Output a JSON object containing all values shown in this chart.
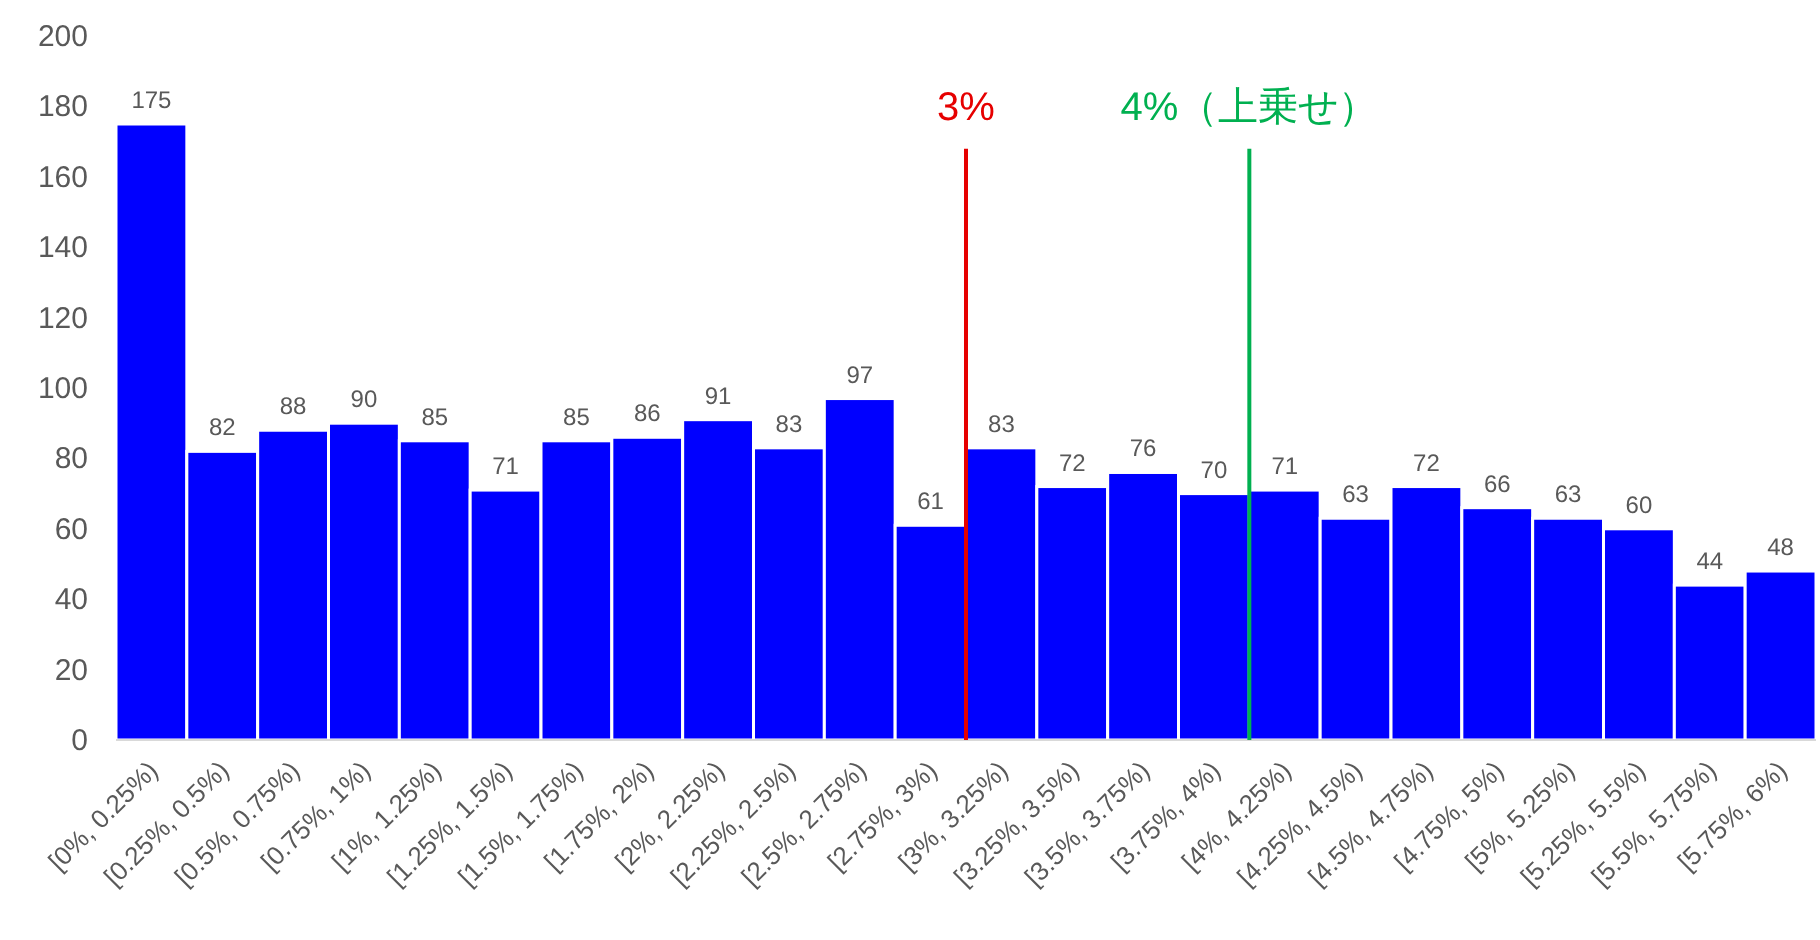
{
  "chart_data": {
    "type": "bar",
    "color": "#0000ff",
    "data_labels": true,
    "categories": [
      "[0%, 0.25%)",
      "[0.25%, 0.5%)",
      "[0.5%, 0.75%)",
      "[0.75%, 1%)",
      "[1%, 1.25%)",
      "[1.25%, 1.5%)",
      "[1.5%, 1.75%)",
      "[1.75%, 2%)",
      "[2%, 2.25%)",
      "[2.25%, 2.5%)",
      "[2.5%, 2.75%)",
      "[2.75%, 3%)",
      "[3%, 3.25%)",
      "[3.25%, 3.5%)",
      "[3.5%, 3.75%)",
      "[3.75%, 4%)",
      "[4%, 4.25%)",
      "[4.25%, 4.5%)",
      "[4.5%, 4.75%)",
      "[4.75%, 5%)",
      "[5%, 5.25%)",
      "[5.25%, 5.5%)",
      "[5.5%, 5.75%)",
      "[5.75%, 6%)"
    ],
    "values": [
      175,
      82,
      88,
      90,
      85,
      71,
      85,
      86,
      91,
      83,
      97,
      61,
      83,
      72,
      76,
      70,
      71,
      63,
      72,
      66,
      63,
      60,
      44,
      48
    ],
    "ylim": [
      0,
      200
    ],
    "yticks": [
      0,
      20,
      40,
      60,
      80,
      100,
      120,
      140,
      160,
      180,
      200
    ],
    "ref_lines": [
      {
        "axis": "x",
        "value": "[3%, 3.25%)",
        "label": "3%",
        "color": "#e60000"
      },
      {
        "axis": "x",
        "value": "[4%, 4.25%)",
        "label": "4%（上乗せ）",
        "color": "#00b050"
      }
    ]
  }
}
